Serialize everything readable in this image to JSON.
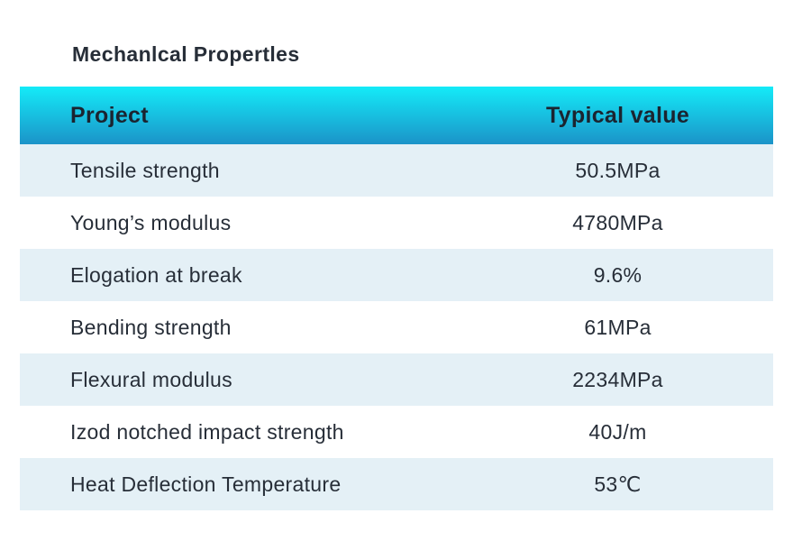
{
  "title": "Mechanlcal Propertles",
  "table": {
    "columns": {
      "project": "Project",
      "typical_value": "Typical value"
    },
    "rows": [
      {
        "label": "Tensile strength",
        "value": "50.5MPa"
      },
      {
        "label": "Young’s modulus",
        "value": "4780MPa"
      },
      {
        "label": "Elogation at break",
        "value": "9.6%"
      },
      {
        "label": "Bending strength",
        "value": "61MPa"
      },
      {
        "label": "Flexural modulus",
        "value": "2234MPa"
      },
      {
        "label": "Izod notched impact strength",
        "value": "40J/m"
      },
      {
        "label": "Heat Deflection Temperature",
        "value": "53℃"
      }
    ]
  },
  "colors": {
    "header_gradient_top": "#14ebf8",
    "header_gradient_bottom": "#1b93c8",
    "row_alt_background": "#e4f0f6",
    "row_background": "#ffffff",
    "header_text": "#1b2430",
    "body_text": "#272e38"
  }
}
